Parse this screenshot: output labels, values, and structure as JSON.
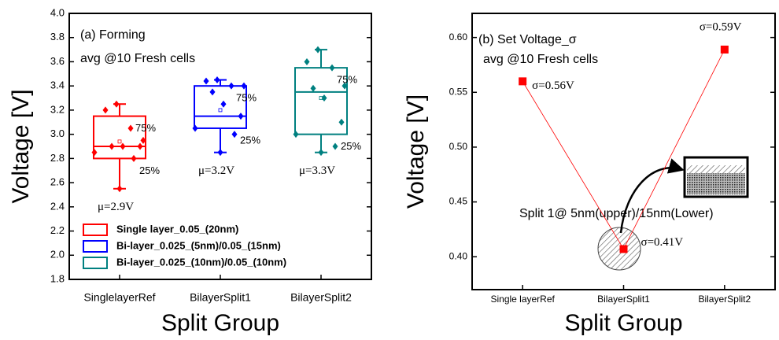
{
  "chart_data": [
    {
      "type": "box",
      "x_label": "Split Group",
      "y_label": "Voltage [V]",
      "annotations": [
        "(a) Forming",
        "avg @10 Fresh cells"
      ],
      "categories": [
        "SinglelayerRef",
        "BilayerSplit1",
        "BilayerSplit2"
      ],
      "ylim": [
        1.8,
        4.0
      ],
      "yticks": [
        1.8,
        {
          "value": 2,
          "label": "2.0"
        },
        2.2,
        2.4,
        2.6,
        2.8,
        {
          "value": 3,
          "label": "3.0"
        },
        3.2,
        3.4,
        3.6,
        3.8,
        {
          "value": 4,
          "label": "4.0"
        }
      ],
      "series": [
        {
          "name": "Single layer_0.05_(20nm)",
          "color": "#ff0000",
          "q1": 2.8,
          "median": 2.9,
          "q3": 3.15,
          "whisker_low": 2.55,
          "whisker_high": 3.25,
          "mean": 2.94,
          "mean_label": "μ=2.9V",
          "q3_label": "75%",
          "q1_label": "25%",
          "points": [
            3.25,
            3.2,
            3.05,
            2.95,
            2.9,
            2.9,
            2.9,
            2.85,
            2.8,
            2.55
          ]
        },
        {
          "name": "Bi-layer_0.025_(5nm)/0.05_(15nm)",
          "color": "#0000ff",
          "q1": 3.05,
          "median": 3.15,
          "q3": 3.4,
          "whisker_low": 2.85,
          "whisker_high": 3.45,
          "mean": 3.2,
          "mean_label": "μ=3.2V",
          "q3_label": "75%",
          "q1_label": "25%",
          "points": [
            3.45,
            3.44,
            3.4,
            3.4,
            3.35,
            3.25,
            3.15,
            3.05,
            3.0,
            2.85
          ]
        },
        {
          "name": "Bi-layer_0.025_(10nm)/0.05_(10nm)",
          "color": "#008080",
          "q1": 3.0,
          "median": 3.35,
          "q3": 3.55,
          "whisker_low": 2.85,
          "whisker_high": 3.7,
          "mean": 3.3,
          "mean_label": "μ=3.3V",
          "q3_label": "75%",
          "q1_label": "25%",
          "points": [
            3.7,
            3.6,
            3.55,
            3.4,
            3.38,
            3.3,
            3.1,
            3.0,
            2.9,
            2.85
          ]
        }
      ]
    },
    {
      "type": "line",
      "x_label": "Split Group",
      "y_label": "Voltage [V]",
      "annotations": [
        "(b) Set Voltage_σ",
        "avg @10 Fresh cells",
        "Split 1@ 5nm(upper)/15nm(Lower)"
      ],
      "categories": [
        "Single layerRef",
        "BilayerSplit1",
        "BilayerSplit2"
      ],
      "ylim": [
        0.37,
        0.622
      ],
      "yticks": [
        {
          "value": 0.4,
          "label": "0.40"
        },
        0.45,
        {
          "value": 0.5,
          "label": "0.50"
        },
        0.55,
        {
          "value": 0.6,
          "label": "0.60"
        }
      ],
      "color": "#ff0000",
      "values": [
        0.56,
        0.407,
        0.589
      ],
      "value_labels": [
        "σ=0.56V",
        "σ=0.41V",
        "σ=0.59V"
      ]
    }
  ]
}
